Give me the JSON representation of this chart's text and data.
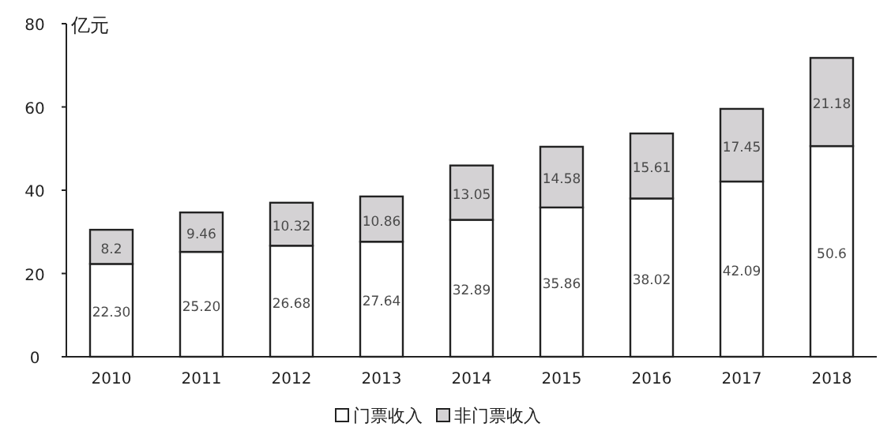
{
  "chart_data": {
    "type": "bar",
    "stacked": true,
    "ylabel": "亿元",
    "categories": [
      "2010",
      "2011",
      "2012",
      "2013",
      "2014",
      "2015",
      "2016",
      "2017",
      "2018"
    ],
    "series": [
      {
        "name": "门票收入",
        "color": "#ffffff",
        "values": [
          22.3,
          25.2,
          26.68,
          27.64,
          32.89,
          35.86,
          38.02,
          42.09,
          50.6
        ],
        "value_labels": [
          "22.30",
          "25.20",
          "26.68",
          "27.64",
          "32.89",
          "35.86",
          "38.02",
          "42.09",
          "50.6"
        ]
      },
      {
        "name": "非门票收入",
        "color": "#d4d2d4",
        "values": [
          8.2,
          9.46,
          10.32,
          10.86,
          13.05,
          14.58,
          15.61,
          17.45,
          21.18
        ],
        "value_labels": [
          "8.2",
          "9.46",
          "10.32",
          "10.86",
          "13.05",
          "14.58",
          "15.61",
          "17.45",
          "21.18"
        ]
      }
    ],
    "ylim": [
      0,
      80
    ],
    "yticks": [
      0,
      20,
      40,
      60,
      80
    ],
    "legend": "bottom"
  }
}
